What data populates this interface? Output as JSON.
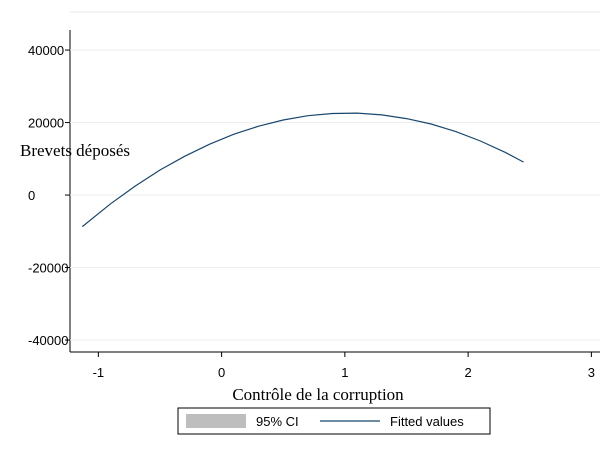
{
  "chart_data": {
    "type": "line",
    "xlabel": "Contrôle de la corruption",
    "ylabel": "Brevets déposés",
    "x": [
      -1.13,
      -0.9,
      -0.7,
      -0.5,
      -0.3,
      -0.1,
      0.1,
      0.3,
      0.5,
      0.7,
      0.9,
      1.1,
      1.3,
      1.5,
      1.7,
      1.9,
      2.1,
      2.3,
      2.45
    ],
    "series": [
      {
        "name": "Fitted values",
        "color": "#1a476f",
        "values": [
          -8700,
          -2400,
          2500,
          6900,
          10700,
          14000,
          16800,
          19000,
          20700,
          21900,
          22500,
          22600,
          22100,
          21100,
          19600,
          17500,
          14900,
          11800,
          9100
        ]
      }
    ],
    "ci": {
      "name": "95% CI",
      "color": "#bebebe"
    },
    "xlim": [
      -1.23,
      3.07
    ],
    "xticks": [
      -1,
      0,
      1,
      2,
      3
    ],
    "ylim": [
      -43300,
      50500
    ],
    "yticks": [
      -40000,
      -20000,
      0,
      20000,
      40000
    ],
    "grid": true
  }
}
